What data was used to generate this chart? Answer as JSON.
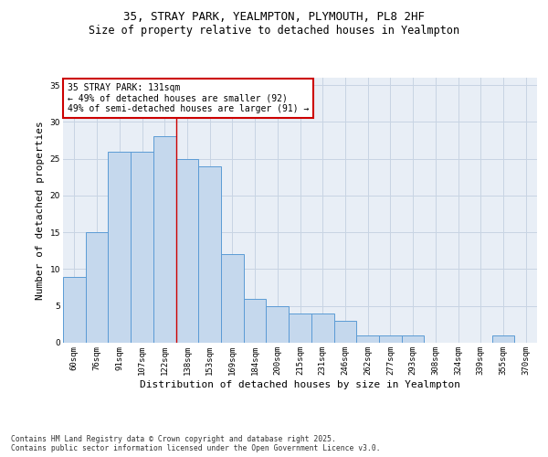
{
  "title_line1": "35, STRAY PARK, YEALMPTON, PLYMOUTH, PL8 2HF",
  "title_line2": "Size of property relative to detached houses in Yealmpton",
  "xlabel": "Distribution of detached houses by size in Yealmpton",
  "ylabel": "Number of detached properties",
  "categories": [
    "60sqm",
    "76sqm",
    "91sqm",
    "107sqm",
    "122sqm",
    "138sqm",
    "153sqm",
    "169sqm",
    "184sqm",
    "200sqm",
    "215sqm",
    "231sqm",
    "246sqm",
    "262sqm",
    "277sqm",
    "293sqm",
    "308sqm",
    "324sqm",
    "339sqm",
    "355sqm",
    "370sqm"
  ],
  "values": [
    9,
    15,
    26,
    26,
    28,
    25,
    24,
    12,
    6,
    5,
    4,
    4,
    3,
    1,
    1,
    1,
    0,
    0,
    0,
    1,
    0
  ],
  "bar_color": "#c5d8ed",
  "bar_edge_color": "#5b9bd5",
  "grid_color": "#c8d4e3",
  "background_color": "#e8eef6",
  "vline_color": "#cc0000",
  "vline_pos": 4.5,
  "annotation_text": "35 STRAY PARK: 131sqm\n← 49% of detached houses are smaller (92)\n49% of semi-detached houses are larger (91) →",
  "annotation_box_color": "#ffffff",
  "annotation_edge_color": "#cc0000",
  "ylim": [
    0,
    36
  ],
  "yticks": [
    0,
    5,
    10,
    15,
    20,
    25,
    30,
    35
  ],
  "footnote": "Contains HM Land Registry data © Crown copyright and database right 2025.\nContains public sector information licensed under the Open Government Licence v3.0.",
  "title_fontsize": 9,
  "subtitle_fontsize": 8.5,
  "tick_fontsize": 6.5,
  "label_fontsize": 8,
  "annotation_fontsize": 7,
  "footnote_fontsize": 5.8
}
